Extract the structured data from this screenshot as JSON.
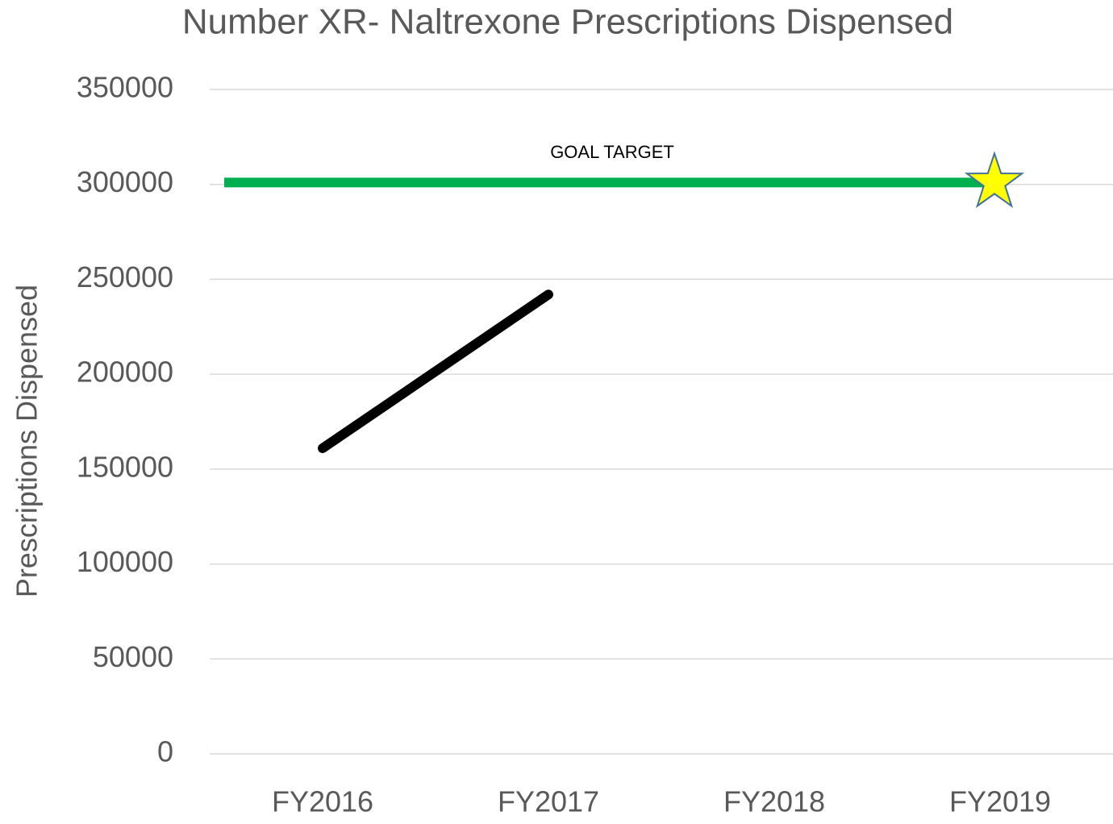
{
  "chart_data": {
    "type": "line",
    "title": "Number XR- Naltrexone Prescriptions Dispensed",
    "y_label": "Prescriptions Dispensed",
    "categories": [
      "FY2016",
      "FY2017",
      "FY2018",
      "FY2019"
    ],
    "series": [
      {
        "color": "#000000",
        "values": [
          161000,
          242000,
          null,
          null
        ]
      }
    ],
    "goal": {
      "label": "GOAL TARGET",
      "value": 301000,
      "color": "#00b050",
      "marker_color": "#ffff00"
    },
    "ylim": [
      0,
      350000
    ],
    "yticks": [
      0,
      50000,
      100000,
      150000,
      200000,
      250000,
      300000,
      350000
    ],
    "grid": true
  }
}
